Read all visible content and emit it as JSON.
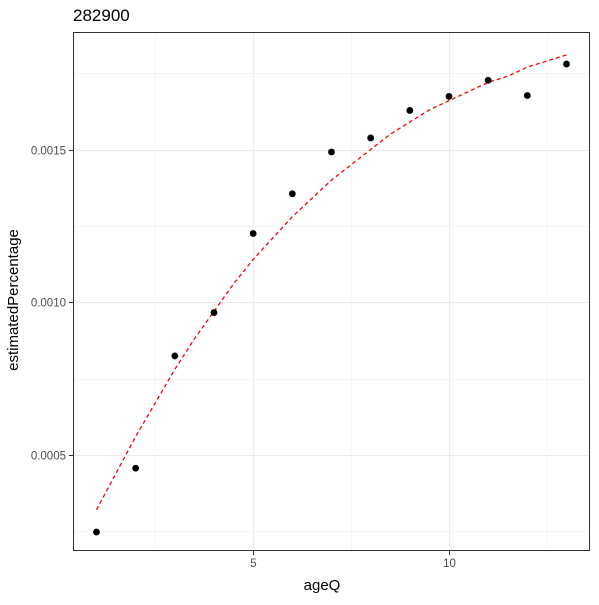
{
  "chart_data": {
    "type": "scatter",
    "title": "282900",
    "xlabel": "ageQ",
    "ylabel": "estimatedPercentage",
    "xlim": [
      0.4,
      13.6
    ],
    "ylim": [
      0.000185,
      0.001885
    ],
    "x_ticks": [
      {
        "value": 5,
        "label": "5"
      },
      {
        "value": 10,
        "label": "10"
      }
    ],
    "y_ticks": [
      {
        "value": 0.0005,
        "label": "0.0005"
      },
      {
        "value": 0.001,
        "label": "0.0010"
      },
      {
        "value": 0.0015,
        "label": "0.0015"
      }
    ],
    "x_minor_gridlines": [
      2.5,
      7.5,
      12.5
    ],
    "y_minor_gridlines": [
      0.00025,
      0.00075,
      0.00125,
      0.00175
    ],
    "grid": true,
    "legend": "none",
    "series": [
      {
        "kind": "points",
        "color": "#000000",
        "x": [
          1,
          2,
          3,
          4,
          5,
          6,
          7,
          8,
          9,
          10,
          11,
          12,
          13
        ],
        "y": [
          0.000247,
          0.000456,
          0.000824,
          0.000966,
          0.001225,
          0.001355,
          0.001492,
          0.001538,
          0.001628,
          0.001674,
          0.001727,
          0.001677,
          0.00178
        ]
      },
      {
        "kind": "fitted-curve",
        "color": "#ff0000",
        "line_style": "dashed",
        "x": [
          1,
          1.5,
          2,
          2.5,
          3,
          3.5,
          4,
          4.5,
          5,
          5.5,
          6,
          6.5,
          7,
          7.5,
          8,
          8.5,
          9,
          9.5,
          10,
          10.5,
          11,
          11.5,
          12,
          12.5,
          13
        ],
        "y": [
          0.00032,
          0.00044,
          0.00056,
          0.00067,
          0.00078,
          0.00088,
          0.00097,
          0.00106,
          0.00114,
          0.00121,
          0.00128,
          0.00134,
          0.0014,
          0.00145,
          0.0015,
          0.00155,
          0.00159,
          0.00163,
          0.00166,
          0.00169,
          0.00172,
          0.00174,
          0.00177,
          0.00179,
          0.00181
        ]
      }
    ]
  }
}
